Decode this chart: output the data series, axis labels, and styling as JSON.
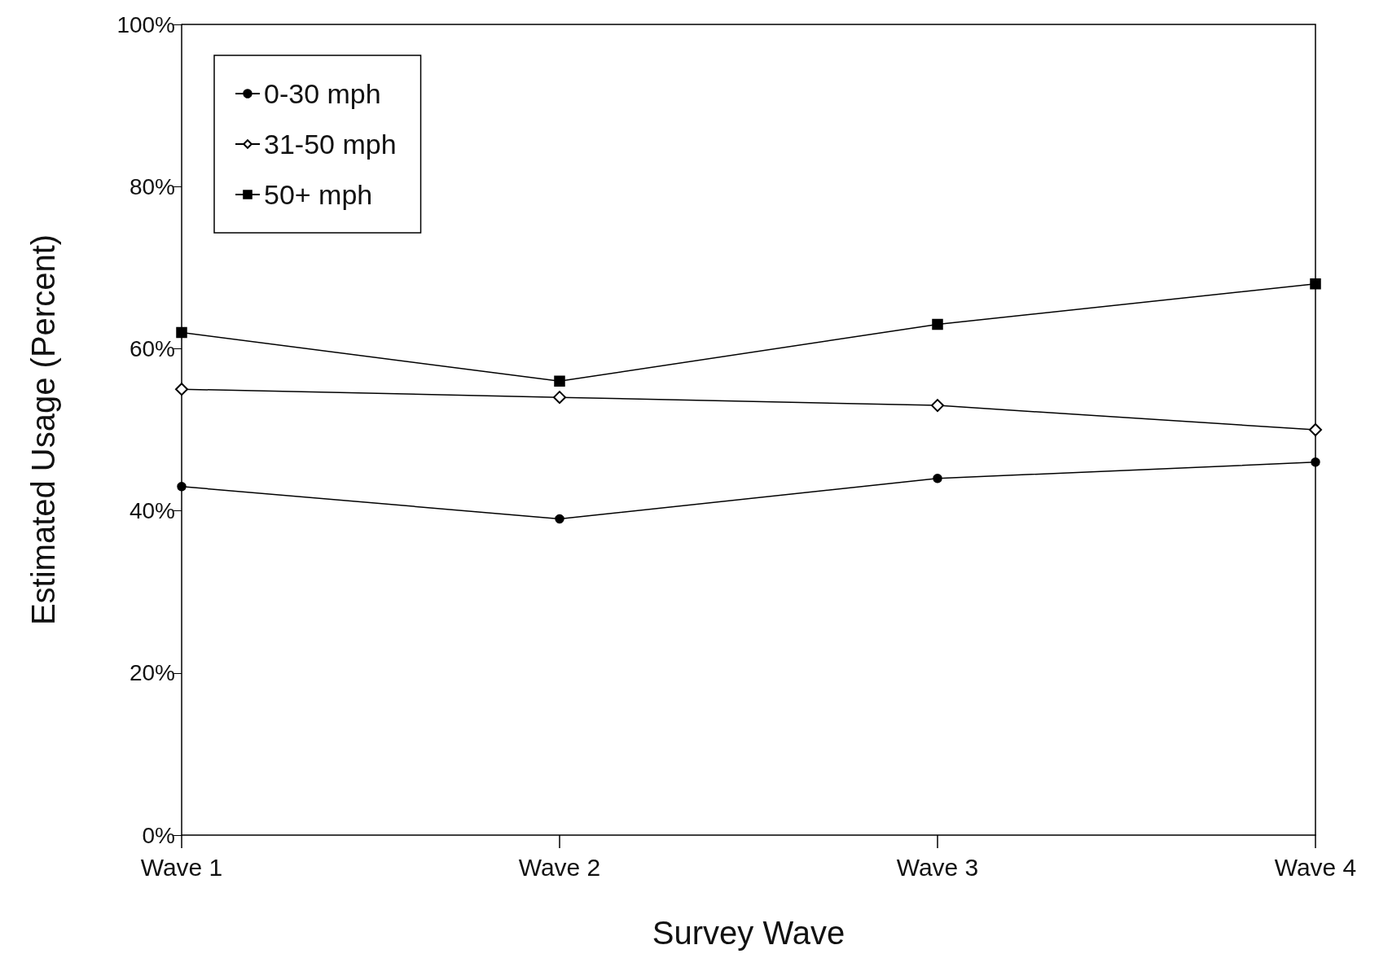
{
  "chart_data": {
    "type": "line",
    "xlabel": "Survey Wave",
    "ylabel": "Estimated Usage (Percent)",
    "categories": [
      "Wave 1",
      "Wave 2",
      "Wave 3",
      "Wave 4"
    ],
    "series": [
      {
        "name": "0-30 mph",
        "color": "#000000",
        "marker": "circle",
        "values": [
          43,
          39,
          44,
          46
        ]
      },
      {
        "name": "31-50 mph",
        "color": "#000000",
        "marker": "diamond",
        "values": [
          55,
          54,
          53,
          50
        ]
      },
      {
        "name": "50+ mph",
        "color": "#000000",
        "marker": "square",
        "values": [
          62,
          56,
          63,
          68
        ]
      }
    ],
    "ylim": [
      0,
      100
    ],
    "yticks": [
      {
        "value": 0,
        "label": "0%"
      },
      {
        "value": 20,
        "label": "20%"
      },
      {
        "value": 40,
        "label": "40%"
      },
      {
        "value": 60,
        "label": "60%"
      },
      {
        "value": 80,
        "label": "80%"
      },
      {
        "value": 100,
        "label": "100%"
      }
    ],
    "grid": false,
    "legend": "top left",
    "line_style": "solid"
  }
}
